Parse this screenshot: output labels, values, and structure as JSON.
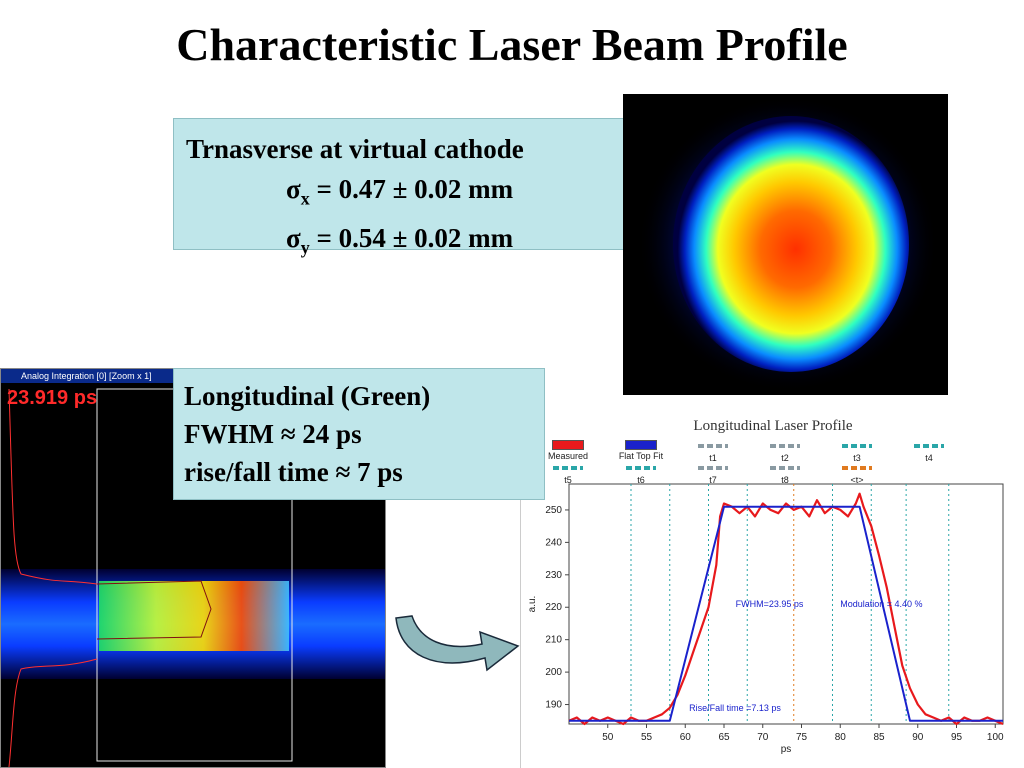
{
  "title": "Characteristic Laser Beam Profile",
  "transverse": {
    "heading": "Trnasverse at virtual cathode",
    "sigma_x": {
      "symbol": "σ",
      "sub": "x",
      "text": " = 0.47 ± 0.02 mm"
    },
    "sigma_y": {
      "symbol": "σ",
      "sub": "y",
      "text": " = 0.54 ± 0.02 mm"
    }
  },
  "longitudinal": {
    "line1": "Longitudinal (Green)",
    "line2": "FWHM ≈ 24 ps",
    "line3": "rise/fall time ≈ 7 ps"
  },
  "streak": {
    "header": "Analog Integration [0] [Zoom x 1]",
    "time_readout": "23.919 ps"
  },
  "colors": {
    "measured": "#e8191c",
    "fit": "#1a22cc",
    "box_bg": "#bfe6ea"
  },
  "chart_data": {
    "type": "line",
    "title": "Longitudinal Laser Profile",
    "xlabel": "ps",
    "ylabel": "a.u.",
    "xlim": [
      45,
      101
    ],
    "ylim": [
      184,
      258
    ],
    "xticks": [
      50,
      55,
      60,
      65,
      70,
      75,
      80,
      85,
      90,
      95,
      100
    ],
    "yticks": [
      190,
      200,
      210,
      220,
      230,
      240,
      250
    ],
    "legend": [
      {
        "name": "Measured",
        "color": "#e8191c",
        "style": "solid"
      },
      {
        "name": "Flat Top Fit",
        "color": "#1a22cc",
        "style": "solid"
      },
      {
        "name": "t1",
        "color": "#8a9aa2",
        "style": "dashed"
      },
      {
        "name": "t2",
        "color": "#8a9aa2",
        "style": "dashed"
      },
      {
        "name": "t3",
        "color": "#2aa6a8",
        "style": "dashed"
      },
      {
        "name": "t4",
        "color": "#2aa6a8",
        "style": "dashed"
      },
      {
        "name": "t5",
        "color": "#2aa6a8",
        "style": "dashed"
      },
      {
        "name": "t6",
        "color": "#2aa6a8",
        "style": "dashed"
      },
      {
        "name": "t7",
        "color": "#8a9aa2",
        "style": "dashed"
      },
      {
        "name": "t8",
        "color": "#8a9aa2",
        "style": "dashed"
      },
      {
        "name": "<t>",
        "color": "#e07a1f",
        "style": "dashed"
      }
    ],
    "vlines": [
      {
        "x": 53,
        "color": "#2aa6a8"
      },
      {
        "x": 58,
        "color": "#2aa6a8"
      },
      {
        "x": 63,
        "color": "#2aa6a8"
      },
      {
        "x": 68,
        "color": "#2aa6a8"
      },
      {
        "x": 74,
        "color": "#e07a1f"
      },
      {
        "x": 79,
        "color": "#2aa6a8"
      },
      {
        "x": 84,
        "color": "#2aa6a8"
      },
      {
        "x": 88.5,
        "color": "#2aa6a8"
      },
      {
        "x": 94,
        "color": "#2aa6a8"
      }
    ],
    "series": [
      {
        "name": "Measured",
        "x": [
          45,
          46,
          47,
          48,
          49,
          50,
          51,
          52,
          53,
          54,
          55,
          56,
          57,
          58,
          59,
          60,
          61,
          62,
          63,
          64,
          64.5,
          65,
          66,
          67,
          68,
          69,
          70,
          71,
          72,
          73,
          74,
          75,
          76,
          77,
          78,
          79,
          80,
          81,
          82,
          82.5,
          83,
          84,
          85,
          86,
          87,
          88,
          89,
          90,
          91,
          92,
          93,
          94,
          95,
          96,
          97,
          98,
          99,
          100,
          101
        ],
        "y": [
          185,
          186,
          184,
          186,
          185,
          186,
          185,
          184,
          186,
          185,
          185,
          186,
          187,
          189,
          193,
          199,
          206,
          213,
          220,
          233,
          248,
          252,
          251,
          249,
          251,
          248,
          252,
          250,
          249,
          252,
          250,
          251,
          248,
          253,
          249,
          251,
          250,
          248,
          252,
          255,
          251,
          245,
          236,
          226,
          214,
          202,
          195,
          190,
          187,
          186,
          185,
          186,
          184,
          186,
          185,
          185,
          186,
          185,
          184
        ]
      },
      {
        "name": "Flat Top Fit",
        "x": [
          45,
          58,
          65,
          82.5,
          89,
          101
        ],
        "y": [
          185,
          185,
          251,
          251,
          185,
          185
        ]
      }
    ],
    "annotations": [
      {
        "text": "FWHM=23.95 ps",
        "x": 66.5,
        "y": 220
      },
      {
        "text": "Modulation = 4.40 %",
        "x": 80,
        "y": 220
      },
      {
        "text": "Rise/Fall time =7.13 ps",
        "x": 60.5,
        "y": 188
      }
    ]
  }
}
